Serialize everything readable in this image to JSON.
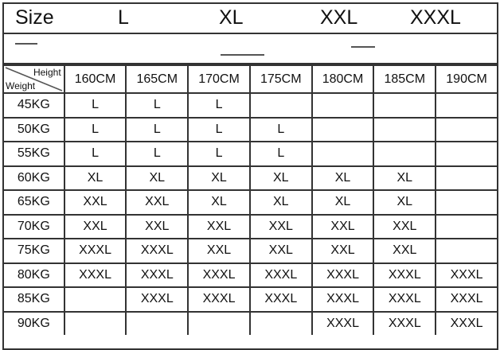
{
  "size_header": {
    "label": "Size",
    "sizes": [
      "L",
      "XL",
      "XXL",
      "XXXL"
    ]
  },
  "table": {
    "corner": {
      "height_label": "Height",
      "weight_label": "Weight"
    },
    "heights": [
      "160CM",
      "165CM",
      "170CM",
      "175CM",
      "180CM",
      "185CM",
      "190CM"
    ],
    "rows": [
      {
        "weight": "45KG",
        "cells": [
          "L",
          "L",
          "L",
          "",
          "",
          "",
          ""
        ]
      },
      {
        "weight": "50KG",
        "cells": [
          "L",
          "L",
          "L",
          "L",
          "",
          "",
          ""
        ]
      },
      {
        "weight": "55KG",
        "cells": [
          "L",
          "L",
          "L",
          "L",
          "",
          "",
          ""
        ]
      },
      {
        "weight": "60KG",
        "cells": [
          "XL",
          "XL",
          "XL",
          "XL",
          "XL",
          "XL",
          ""
        ]
      },
      {
        "weight": "65KG",
        "cells": [
          "XXL",
          "XXL",
          "XL",
          "XL",
          "XL",
          "XL",
          ""
        ]
      },
      {
        "weight": "70KG",
        "cells": [
          "XXL",
          "XXL",
          "XXL",
          "XXL",
          "XXL",
          "XXL",
          ""
        ]
      },
      {
        "weight": "75KG",
        "cells": [
          "XXXL",
          "XXXL",
          "XXL",
          "XXL",
          "XXL",
          "XXL",
          ""
        ]
      },
      {
        "weight": "80KG",
        "cells": [
          "XXXL",
          "XXXL",
          "XXXL",
          "XXXL",
          "XXXL",
          "XXXL",
          "XXXL"
        ]
      },
      {
        "weight": "85KG",
        "cells": [
          "",
          "XXXL",
          "XXXL",
          "XXXL",
          "XXXL",
          "XXXL",
          "XXXL"
        ]
      },
      {
        "weight": "90KG",
        "cells": [
          "",
          "",
          "",
          "",
          "XXXL",
          "XXXL",
          "XXXL"
        ]
      }
    ]
  }
}
